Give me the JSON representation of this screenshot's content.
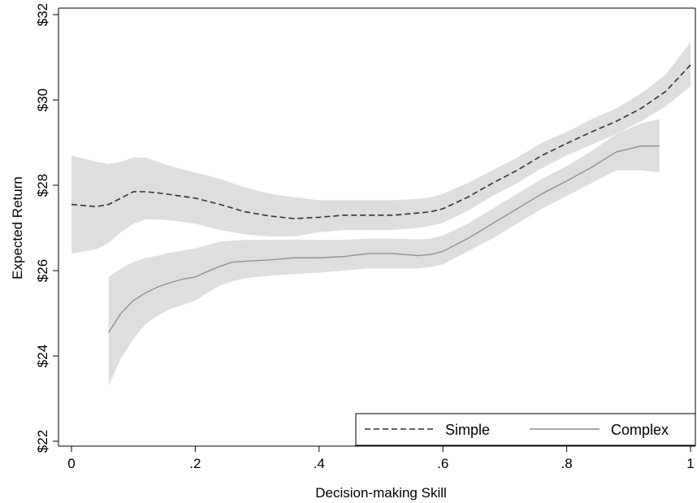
{
  "chart_data": {
    "type": "line",
    "xlabel": "Decision-making Skill",
    "ylabel": "Expected Return",
    "xlim": [
      0,
      1
    ],
    "ylim": [
      22,
      32
    ],
    "x_ticks": [
      {
        "value": 0,
        "label": "0"
      },
      {
        "value": 0.2,
        "label": ".2"
      },
      {
        "value": 0.4,
        "label": ".4"
      },
      {
        "value": 0.6,
        "label": ".6"
      },
      {
        "value": 0.8,
        "label": ".8"
      },
      {
        "value": 1,
        "label": "1"
      }
    ],
    "y_ticks": [
      {
        "value": 22,
        "label": "$22"
      },
      {
        "value": 24,
        "label": "$24"
      },
      {
        "value": 26,
        "label": "$26"
      },
      {
        "value": 28,
        "label": "$28"
      },
      {
        "value": 30,
        "label": "$30"
      },
      {
        "value": 32,
        "label": "$32"
      }
    ],
    "grid": false,
    "legend_position": "bottom-right",
    "band_color": "#dcdcdc",
    "series": [
      {
        "name": "Simple",
        "style": "dashed",
        "color": "#333333",
        "x": [
          0,
          0.04,
          0.06,
          0.08,
          0.1,
          0.12,
          0.14,
          0.16,
          0.2,
          0.24,
          0.28,
          0.32,
          0.36,
          0.4,
          0.44,
          0.48,
          0.52,
          0.56,
          0.58,
          0.6,
          0.64,
          0.68,
          0.72,
          0.76,
          0.8,
          0.84,
          0.88,
          0.92,
          0.96,
          1.0
        ],
        "y": [
          27.55,
          27.5,
          27.55,
          27.7,
          27.85,
          27.85,
          27.82,
          27.78,
          27.7,
          27.55,
          27.38,
          27.28,
          27.22,
          27.25,
          27.3,
          27.3,
          27.3,
          27.35,
          27.38,
          27.45,
          27.72,
          28.05,
          28.35,
          28.7,
          28.98,
          29.25,
          29.5,
          29.8,
          30.2,
          30.82
        ],
        "lower": [
          26.4,
          26.5,
          26.65,
          26.9,
          27.1,
          27.2,
          27.2,
          27.18,
          27.1,
          26.95,
          26.85,
          26.8,
          26.8,
          26.9,
          26.95,
          26.95,
          26.95,
          27.0,
          27.05,
          27.12,
          27.4,
          27.75,
          28.05,
          28.4,
          28.7,
          28.95,
          29.2,
          29.5,
          29.85,
          30.32
        ],
        "upper": [
          28.7,
          28.55,
          28.5,
          28.55,
          28.65,
          28.65,
          28.55,
          28.45,
          28.3,
          28.15,
          27.95,
          27.8,
          27.72,
          27.65,
          27.65,
          27.65,
          27.65,
          27.68,
          27.72,
          27.8,
          28.05,
          28.35,
          28.65,
          29.0,
          29.25,
          29.55,
          29.8,
          30.15,
          30.6,
          31.35
        ]
      },
      {
        "name": "Complex",
        "style": "solid",
        "color": "#8c8c8c",
        "x": [
          0.06,
          0.08,
          0.1,
          0.12,
          0.14,
          0.16,
          0.18,
          0.2,
          0.22,
          0.24,
          0.26,
          0.28,
          0.32,
          0.36,
          0.4,
          0.44,
          0.48,
          0.52,
          0.56,
          0.58,
          0.6,
          0.64,
          0.68,
          0.72,
          0.76,
          0.8,
          0.84,
          0.88,
          0.92,
          0.95
        ],
        "y": [
          24.55,
          25.0,
          25.3,
          25.48,
          25.62,
          25.72,
          25.8,
          25.85,
          25.98,
          26.1,
          26.2,
          26.22,
          26.25,
          26.3,
          26.3,
          26.33,
          26.4,
          26.4,
          26.35,
          26.38,
          26.45,
          26.75,
          27.1,
          27.45,
          27.8,
          28.1,
          28.42,
          28.78,
          28.92,
          28.92
        ],
        "lower": [
          23.3,
          23.95,
          24.4,
          24.75,
          24.95,
          25.1,
          25.2,
          25.3,
          25.48,
          25.65,
          25.75,
          25.82,
          25.88,
          25.92,
          25.95,
          26.0,
          26.05,
          26.05,
          26.05,
          26.08,
          26.15,
          26.45,
          26.75,
          27.1,
          27.45,
          27.75,
          28.05,
          28.35,
          28.35,
          28.3
        ],
        "upper": [
          25.85,
          26.05,
          26.2,
          26.3,
          26.35,
          26.42,
          26.47,
          26.52,
          26.6,
          26.68,
          26.7,
          26.72,
          26.72,
          26.73,
          26.72,
          26.72,
          26.75,
          26.75,
          26.73,
          26.75,
          26.82,
          27.1,
          27.45,
          27.8,
          28.15,
          28.45,
          28.8,
          29.2,
          29.45,
          29.55
        ]
      }
    ]
  }
}
